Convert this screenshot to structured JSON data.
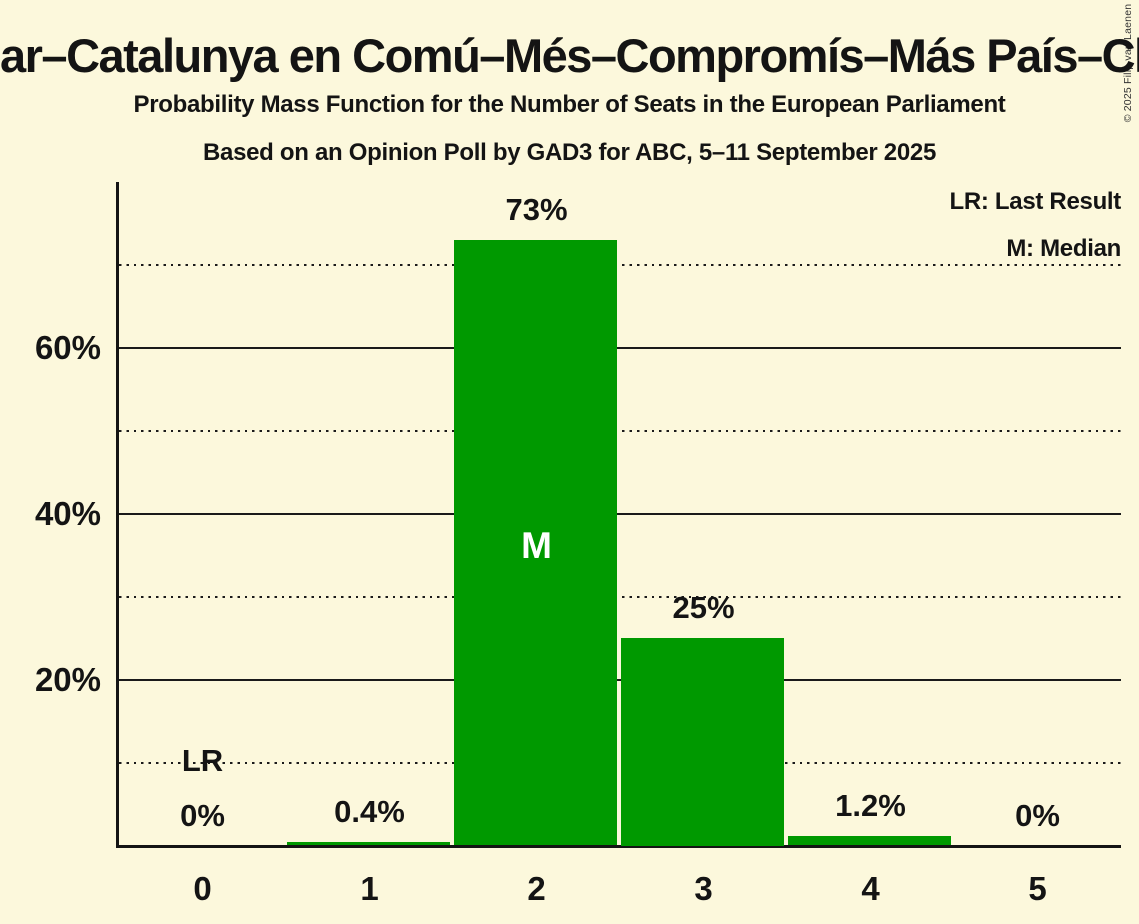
{
  "title": "ar–Catalunya en Comú–Més–Compromís–Más País–Chu",
  "subtitle": "Probability Mass Function for the Number of Seats in the European Parliament",
  "poll_line": "Based on an Opinion Poll by GAD3 for ABC, 5–11 September 2025",
  "copyright": "© 2025 Filip van Laenen",
  "legend": {
    "last_result": "LR: Last Result",
    "median": "M: Median"
  },
  "colors": {
    "background": "#FCF8DC",
    "bar": "#009900",
    "text": "#141414",
    "median_text": "#FFFFFF"
  },
  "chart_data": {
    "type": "bar",
    "title": "Probability Mass Function for the Number of Seats in the European Parliament",
    "subtitle": "Based on an Opinion Poll by GAD3 for ABC, 5–11 September 2025",
    "categories": [
      "0",
      "1",
      "2",
      "3",
      "4",
      "5"
    ],
    "values": [
      0,
      0.4,
      73,
      25,
      1.2,
      0
    ],
    "value_labels": [
      "0%",
      "0.4%",
      "73%",
      "25%",
      "1.2%",
      "0%"
    ],
    "ylim": [
      0,
      80
    ],
    "gridlines": {
      "solid": [
        {
          "value": 20,
          "label": "20%"
        },
        {
          "value": 40,
          "label": "40%"
        },
        {
          "value": 60,
          "label": "60%"
        }
      ],
      "dotted": [
        10,
        30,
        50,
        70
      ]
    },
    "last_result": {
      "category_index": 0,
      "label": "LR"
    },
    "median": {
      "category_index": 2,
      "label": "M"
    },
    "legend_position": "top-right",
    "grid": true
  }
}
